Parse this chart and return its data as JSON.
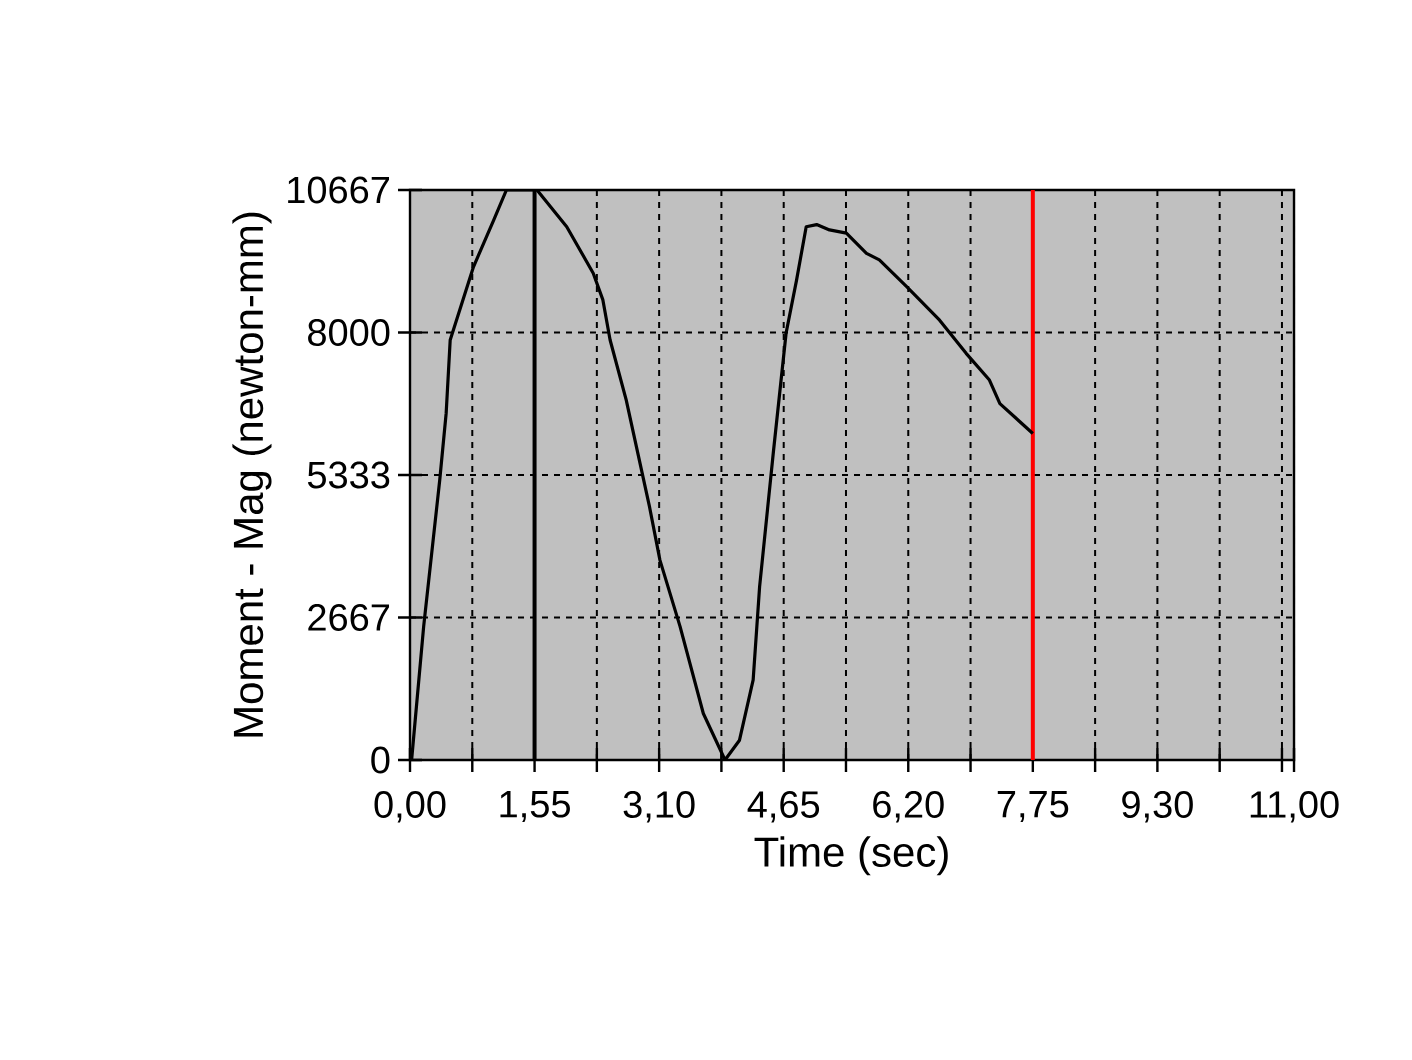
{
  "chart_data": {
    "type": "line",
    "xlabel": "Time (sec)",
    "ylabel": "Moment - Mag  (newton-mm)",
    "x": [
      0.02,
      0.17,
      0.37,
      0.45,
      0.5,
      0.79,
      1.04,
      1.2,
      1.58,
      1.95,
      2.28,
      2.4,
      2.49,
      2.69,
      2.98,
      3.11,
      3.36,
      3.65,
      3.92,
      4.1,
      4.27,
      4.35,
      4.52,
      4.68,
      4.81,
      4.93,
      5.06,
      5.22,
      5.43,
      5.68,
      5.84,
      6.18,
      6.59,
      6.92,
      7.21,
      7.34,
      7.75
    ],
    "series": [
      {
        "color": "#000000",
        "values": [
          0,
          2500,
          5240,
          6490,
          7860,
          9230,
          10100,
          10667,
          10667,
          9980,
          9110,
          8610,
          7860,
          6740,
          4740,
          3740,
          2500,
          870,
          0,
          370,
          1500,
          3240,
          5740,
          7990,
          8980,
          9980,
          10020,
          9920,
          9860,
          9480,
          9360,
          8860,
          8230,
          7610,
          7110,
          6670,
          6110
        ]
      }
    ],
    "xlim": [
      0,
      11
    ],
    "ylim": [
      0,
      10667
    ],
    "xticks": [
      {
        "value": 0,
        "label": "0,00"
      },
      {
        "value": 0.775,
        "label": null
      },
      {
        "value": 1.55,
        "label": "1,55"
      },
      {
        "value": 2.325,
        "label": null
      },
      {
        "value": 3.1,
        "label": "3,10"
      },
      {
        "value": 3.875,
        "label": null
      },
      {
        "value": 4.65,
        "label": "4,65"
      },
      {
        "value": 5.425,
        "label": null
      },
      {
        "value": 6.2,
        "label": "6,20"
      },
      {
        "value": 6.975,
        "label": null
      },
      {
        "value": 7.75,
        "label": "7,75"
      },
      {
        "value": 8.525,
        "label": null
      },
      {
        "value": 9.3,
        "label": "9,30"
      },
      {
        "value": 10.075,
        "label": null
      },
      {
        "value": 10.85,
        "label": null
      },
      {
        "value": 11,
        "label": "11,00"
      }
    ],
    "yticks": [
      0,
      2667,
      5333,
      8000,
      10667
    ],
    "ref_lines": [
      {
        "axis": "x",
        "value": 1.55,
        "color": "#000000"
      },
      {
        "axis": "x",
        "value": 7.75,
        "color": "#ff0000"
      }
    ],
    "grid": true,
    "marker": "none",
    "line_style": "solid"
  }
}
